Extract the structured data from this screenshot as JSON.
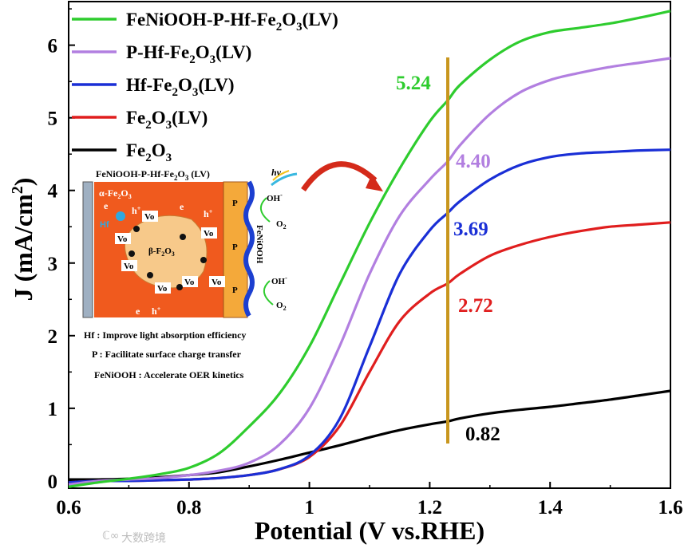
{
  "chart_data": {
    "type": "line",
    "xlabel": "Potential (V vs.RHE)",
    "ylabel": "J (mA/cm",
    "ylabel_sup": "2",
    "ylabel_close": ")",
    "xlim": [
      0.6,
      1.6
    ],
    "ylim": [
      -0.1,
      6.6
    ],
    "xticks": [
      0.6,
      0.8,
      1.0,
      1.2,
      1.4,
      1.6
    ],
    "xtick_labels": [
      "0.6",
      "0.8",
      "1",
      "1.2",
      "1.4",
      "1.6"
    ],
    "yticks": [
      0,
      1,
      2,
      3,
      4,
      5,
      6
    ],
    "ytick_labels": [
      "0",
      "1",
      "2",
      "3",
      "4",
      "5",
      "6"
    ],
    "marker_line": {
      "x": 1.23,
      "color": "#c8961e"
    },
    "series": [
      {
        "name": "FeNiOOH-P-Hf-Fe2O3(LV)",
        "legend_main": "FeNiOOH-P-Hf-Fe",
        "legend_sub": "2",
        "legend_mid": "O",
        "legend_sub2": "3",
        "legend_end": "(LV)",
        "color": "#2ecc2e",
        "x": [
          0.6,
          0.65,
          0.7,
          0.75,
          0.8,
          0.85,
          0.9,
          0.95,
          1.0,
          1.05,
          1.1,
          1.15,
          1.2,
          1.23,
          1.25,
          1.3,
          1.35,
          1.4,
          1.45,
          1.5,
          1.55,
          1.6
        ],
        "y": [
          -0.08,
          -0.02,
          0.03,
          0.09,
          0.18,
          0.38,
          0.75,
          1.2,
          1.85,
          2.7,
          3.55,
          4.3,
          4.95,
          5.24,
          5.45,
          5.8,
          6.05,
          6.18,
          6.24,
          6.3,
          6.38,
          6.47
        ]
      },
      {
        "name": "P-Hf-Fe2O3(LV)",
        "legend_main": "P-Hf-Fe",
        "legend_sub": "2",
        "legend_mid": "O",
        "legend_sub2": "3",
        "legend_end": "(LV)",
        "color": "#b27fe0",
        "x": [
          0.6,
          0.65,
          0.7,
          0.75,
          0.8,
          0.85,
          0.9,
          0.95,
          1.0,
          1.05,
          1.1,
          1.15,
          1.2,
          1.23,
          1.25,
          1.3,
          1.35,
          1.4,
          1.45,
          1.5,
          1.55,
          1.6
        ],
        "y": [
          -0.05,
          0.0,
          0.02,
          0.04,
          0.08,
          0.14,
          0.25,
          0.5,
          1.0,
          1.85,
          2.85,
          3.65,
          4.15,
          4.4,
          4.62,
          5.05,
          5.35,
          5.52,
          5.62,
          5.7,
          5.76,
          5.82
        ]
      },
      {
        "name": "Hf-Fe2O3(LV)",
        "legend_main": "Hf-Fe",
        "legend_sub": "2",
        "legend_mid": "O",
        "legend_sub2": "3",
        "legend_end": "(LV)",
        "color": "#1a2fd6",
        "x": [
          0.6,
          0.65,
          0.7,
          0.75,
          0.8,
          0.85,
          0.9,
          0.95,
          1.0,
          1.05,
          1.1,
          1.15,
          1.2,
          1.23,
          1.25,
          1.3,
          1.35,
          1.4,
          1.45,
          1.5,
          1.55,
          1.6
        ],
        "y": [
          -0.02,
          0.0,
          0.0,
          0.01,
          0.02,
          0.04,
          0.08,
          0.16,
          0.35,
          0.85,
          1.85,
          2.85,
          3.45,
          3.69,
          3.85,
          4.15,
          4.35,
          4.46,
          4.51,
          4.53,
          4.55,
          4.56
        ]
      },
      {
        "name": "Fe2O3(LV)",
        "legend_main": "Fe",
        "legend_sub": "2",
        "legend_mid": "O",
        "legend_sub2": "3",
        "legend_end": "(LV)",
        "color": "#e01e1e",
        "x": [
          0.6,
          0.65,
          0.7,
          0.75,
          0.8,
          0.85,
          0.9,
          0.95,
          1.0,
          1.05,
          1.1,
          1.15,
          1.2,
          1.23,
          1.25,
          1.3,
          1.35,
          1.4,
          1.45,
          1.5,
          1.55,
          1.6
        ],
        "y": [
          -0.02,
          0.0,
          0.0,
          0.01,
          0.02,
          0.04,
          0.08,
          0.16,
          0.33,
          0.75,
          1.5,
          2.2,
          2.58,
          2.72,
          2.85,
          3.1,
          3.25,
          3.36,
          3.44,
          3.5,
          3.53,
          3.56
        ]
      },
      {
        "name": "Fe2O3",
        "legend_main": "Fe",
        "legend_sub": "2",
        "legend_mid": "O",
        "legend_sub2": "3",
        "legend_end": "",
        "color": "#000000",
        "x": [
          0.6,
          0.65,
          0.7,
          0.75,
          0.8,
          0.85,
          0.9,
          0.95,
          1.0,
          1.05,
          1.1,
          1.15,
          1.2,
          1.23,
          1.25,
          1.3,
          1.35,
          1.4,
          1.45,
          1.5,
          1.55,
          1.6
        ],
        "y": [
          0.02,
          0.02,
          0.03,
          0.05,
          0.08,
          0.12,
          0.2,
          0.29,
          0.39,
          0.49,
          0.6,
          0.7,
          0.78,
          0.82,
          0.86,
          0.93,
          0.98,
          1.02,
          1.07,
          1.12,
          1.18,
          1.24
        ]
      }
    ],
    "annotations": [
      {
        "label": "5.24",
        "color": "#2ecc2e"
      },
      {
        "label": "4.40",
        "color": "#b27fe0"
      },
      {
        "label": "3.69",
        "color": "#1a2fd6"
      },
      {
        "label": "2.72",
        "color": "#e01e1e"
      },
      {
        "label": "0.82",
        "color": "#000000"
      }
    ]
  },
  "inset": {
    "title_main": "FeNiOOH-P-Hf-Fe",
    "title_sub": "2",
    "title_mid": "O",
    "title_sub2": "3",
    "title_end": " (LV)",
    "hv": "hv",
    "alpha_label": "α-Fe",
    "alpha_sub": "2",
    "alpha_mid": "O",
    "alpha_sub2": "3",
    "beta_label": "β-F",
    "beta_sub": "2",
    "beta_mid": "O",
    "beta_sub2": "3",
    "hf_label": "Hf",
    "vo_label": "Vo",
    "p_label": "P",
    "feniooh_label": "FeNiOOH",
    "oh_label": "OH",
    "oh_sup": "-",
    "o2_label": "O",
    "o2_sub": "2",
    "e_label": "e",
    "h_label": "h",
    "h_sup": "+",
    "captions": [
      "Hf : Improve light absorption efficiency",
      "P : Facilitate surface charge transfer",
      "FeNiOOH : Accelerate OER kinetics"
    ]
  },
  "watermark": {
    "icon": "ℂ∞",
    "text": "大数跨境"
  }
}
